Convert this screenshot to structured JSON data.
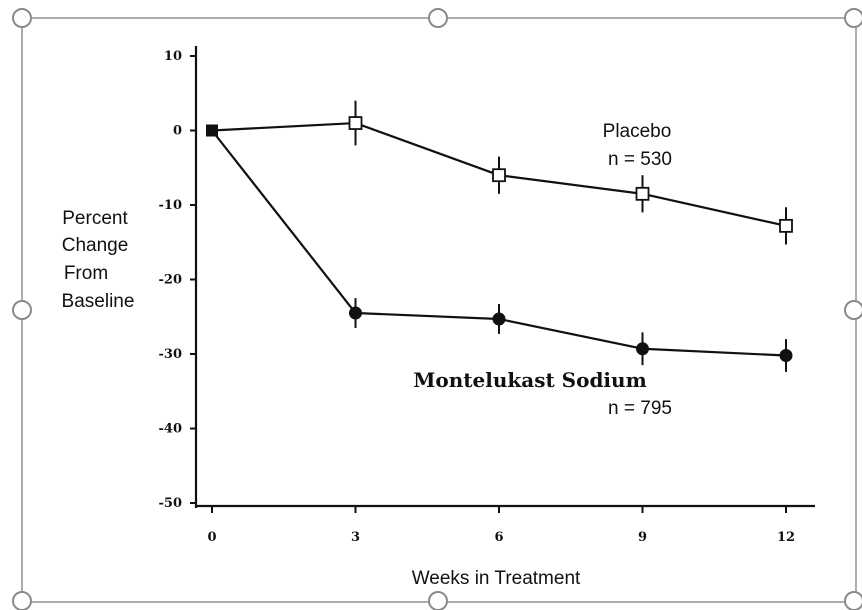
{
  "chart_data": {
    "type": "line",
    "x": [
      0,
      3,
      6,
      9,
      12
    ],
    "xticks": [
      "0",
      "3",
      "6",
      "9",
      "12"
    ],
    "yticks": [
      "10",
      "0",
      "-10",
      "-20",
      "-30",
      "-40",
      "-50"
    ],
    "ytick_values": [
      10,
      0,
      -10,
      -20,
      -30,
      -40,
      -50
    ],
    "xlim": [
      0,
      12
    ],
    "ylim": [
      -50,
      10
    ],
    "xlabel": "Weeks in Treatment",
    "ylabel_lines": [
      "Percent",
      "Change",
      "From",
      "Baseline"
    ],
    "grid": false,
    "series": [
      {
        "name": "Placebo",
        "n_label": "n = 530",
        "marker": "open-square",
        "values": [
          0,
          1,
          -6,
          -8.5,
          -12.8
        ],
        "error": [
          0,
          3,
          2.5,
          2.5,
          2.5
        ]
      },
      {
        "name": "Montelukast Sodium",
        "n_label": "n = 795",
        "marker": "filled-circle",
        "values": [
          0,
          -24.5,
          -25.3,
          -29.3,
          -30.2
        ],
        "error": [
          0,
          2,
          2,
          2.2,
          2.2
        ]
      }
    ],
    "colors": {
      "line": "#111111",
      "frame": "#7f7f7f",
      "handle": "#7f7f7f"
    }
  }
}
